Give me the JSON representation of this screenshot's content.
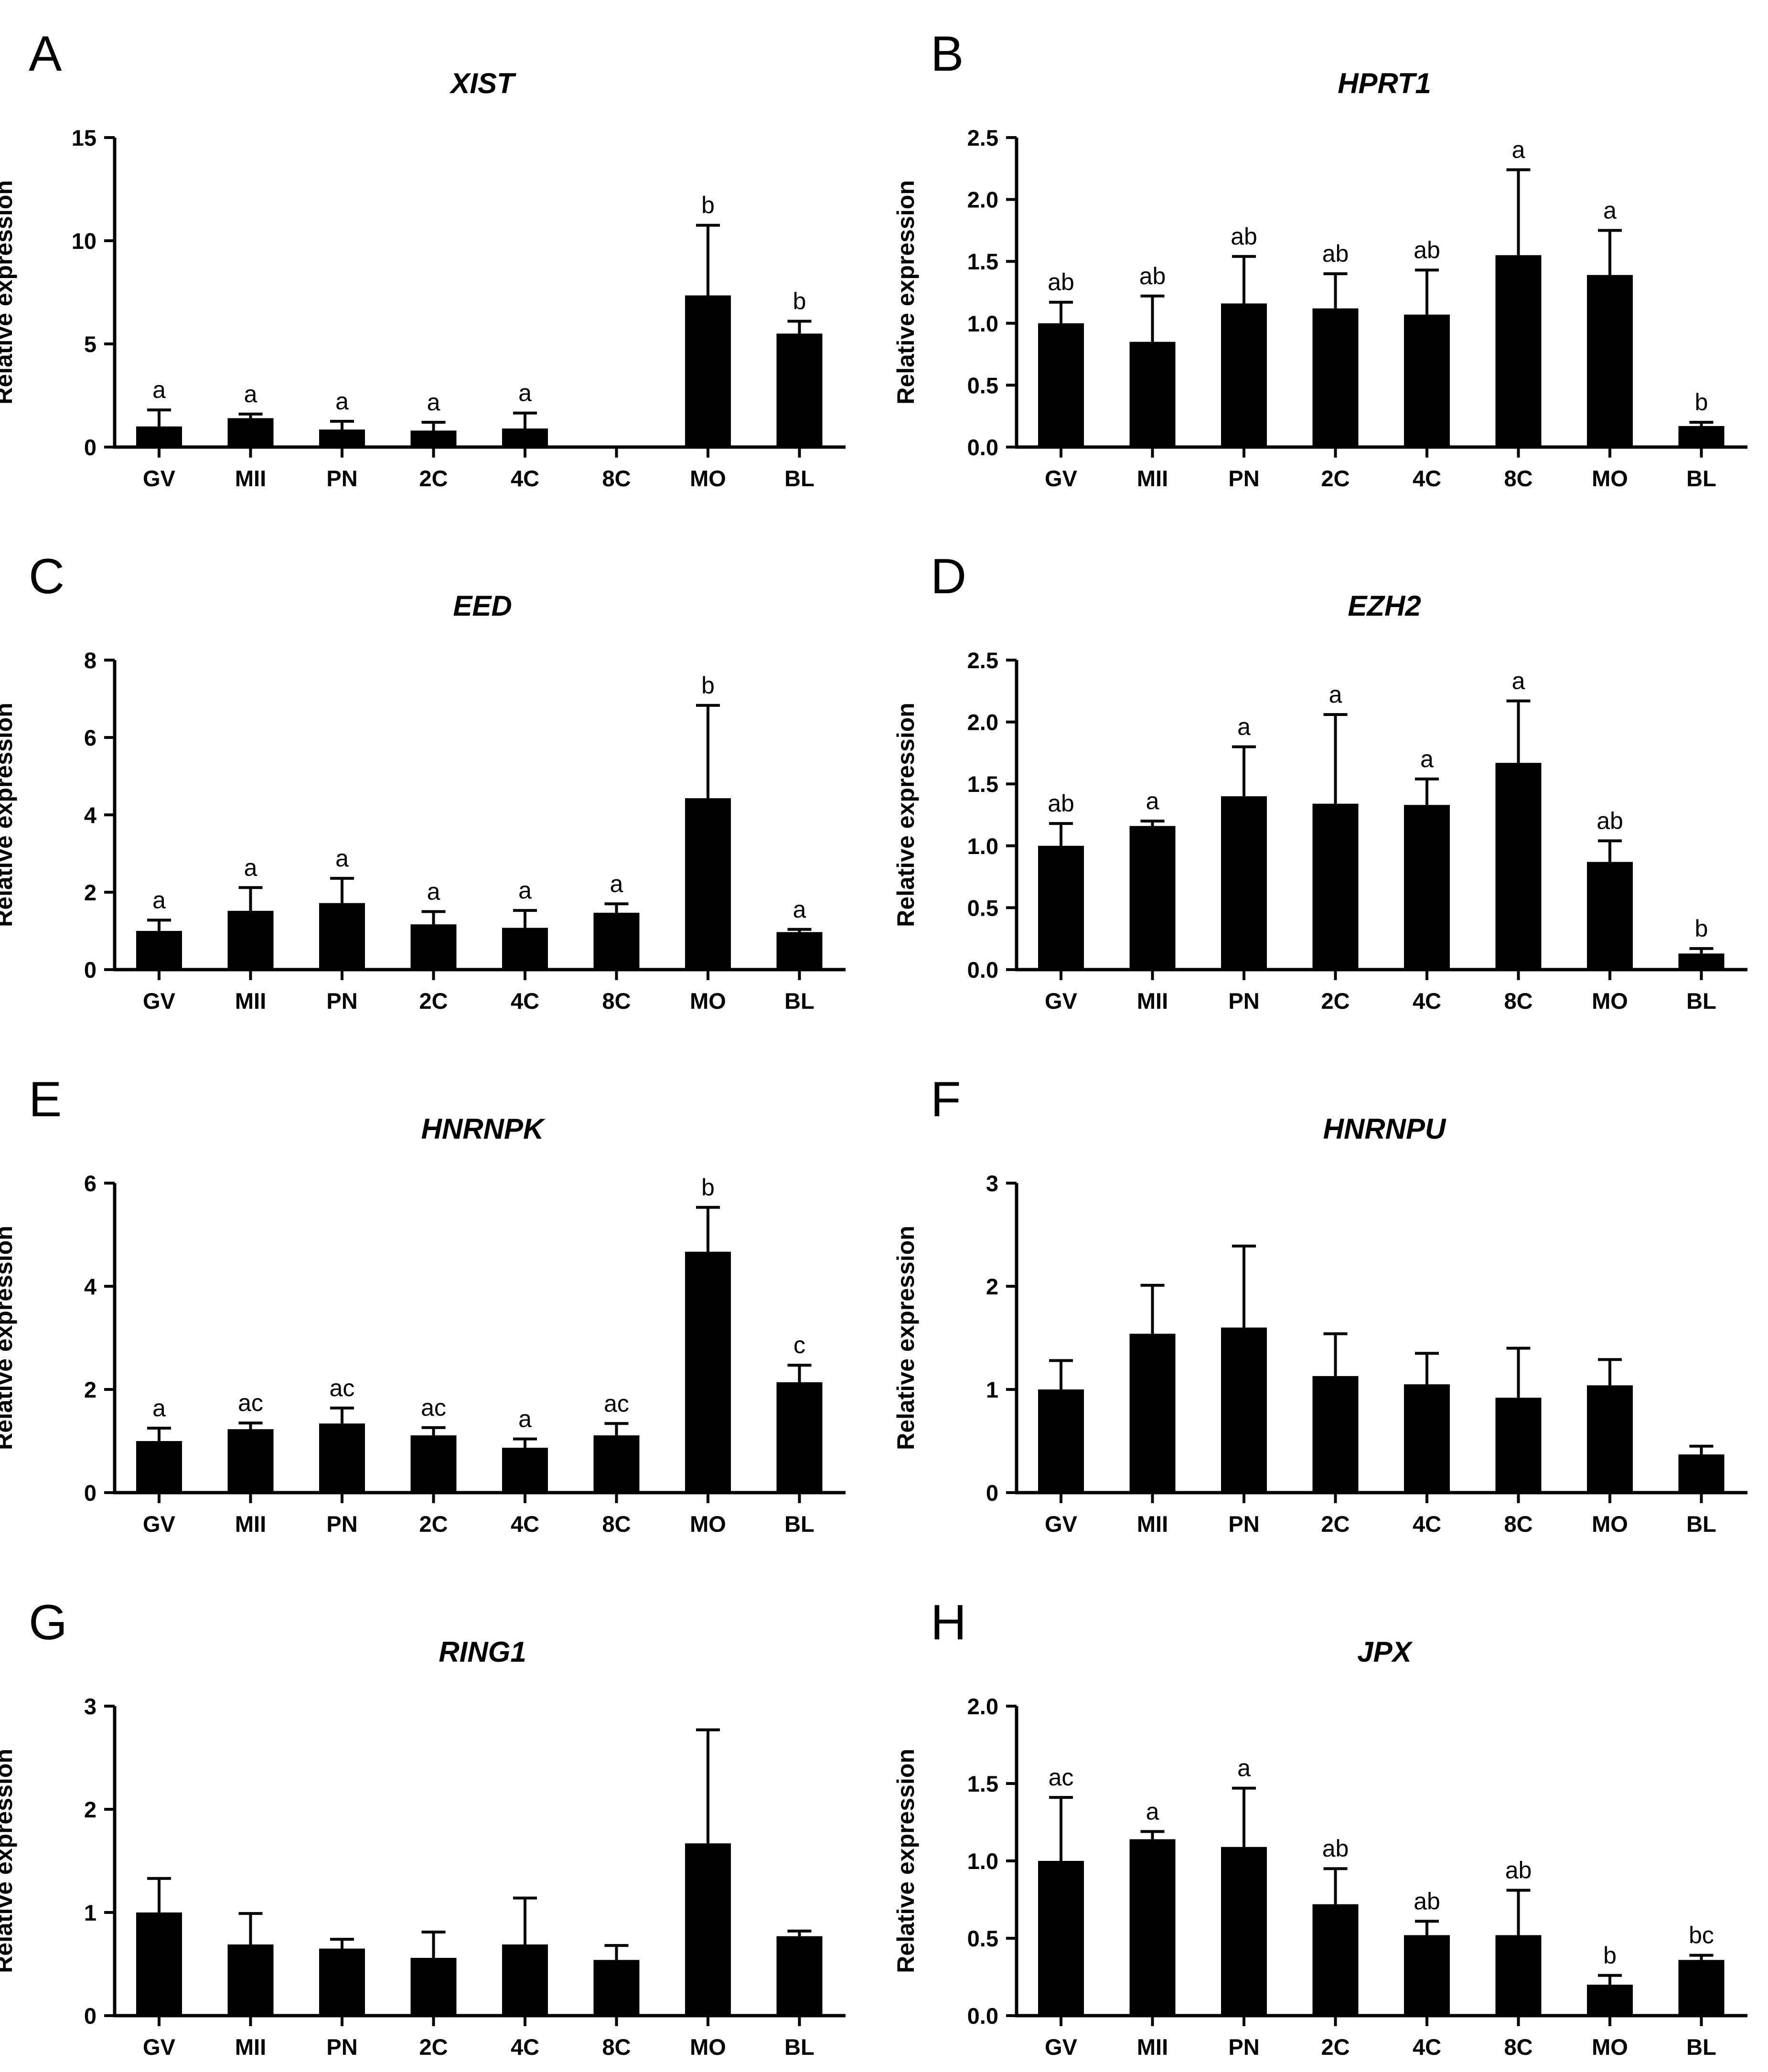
{
  "figure": {
    "categories": [
      "GV",
      "MII",
      "PN",
      "2C",
      "4C",
      "8C",
      "MO",
      "BL"
    ],
    "ylabel": "Relative expression"
  },
  "chart_data": [
    {
      "panel": "A",
      "type": "bar",
      "title": "XIST",
      "categories": [
        "GV",
        "MII",
        "PN",
        "2C",
        "4C",
        "8C",
        "MO",
        "BL"
      ],
      "values": [
        1.0,
        1.4,
        0.85,
        0.8,
        0.9,
        null,
        7.35,
        5.5
      ],
      "errors": [
        0.8,
        0.2,
        0.4,
        0.4,
        0.75,
        null,
        3.4,
        0.6
      ],
      "labels": [
        "a",
        "a",
        "a",
        "a",
        "a",
        "",
        "b",
        "b"
      ],
      "ylim": [
        0,
        15
      ],
      "yticks": [
        "0",
        "5",
        "10",
        "15"
      ],
      "ylabel": "Relative expression"
    },
    {
      "panel": "B",
      "type": "bar",
      "title": "HPRT1",
      "categories": [
        "GV",
        "MII",
        "PN",
        "2C",
        "4C",
        "8C",
        "MO",
        "BL"
      ],
      "values": [
        1.0,
        0.85,
        1.16,
        1.12,
        1.07,
        1.55,
        1.39,
        0.17
      ],
      "errors": [
        0.17,
        0.37,
        0.38,
        0.28,
        0.36,
        0.69,
        0.36,
        0.03
      ],
      "labels": [
        "ab",
        "ab",
        "ab",
        "ab",
        "ab",
        "a",
        "a",
        "b"
      ],
      "ylim": [
        0,
        2.5
      ],
      "yticks": [
        "0.0",
        "0.5",
        "1.0",
        "1.5",
        "2.0",
        "2.5"
      ],
      "ylabel": "Relative expression"
    },
    {
      "panel": "C",
      "type": "bar",
      "title": "EED",
      "categories": [
        "GV",
        "MII",
        "PN",
        "2C",
        "4C",
        "8C",
        "MO",
        "BL"
      ],
      "values": [
        1.0,
        1.52,
        1.72,
        1.17,
        1.08,
        1.47,
        4.43,
        0.97
      ],
      "errors": [
        0.28,
        0.6,
        0.64,
        0.33,
        0.45,
        0.23,
        2.4,
        0.07
      ],
      "labels": [
        "a",
        "a",
        "a",
        "a",
        "a",
        "a",
        "b",
        "a"
      ],
      "ylim": [
        0,
        8
      ],
      "yticks": [
        "0",
        "2",
        "4",
        "6",
        "8"
      ],
      "ylabel": "Relative expression"
    },
    {
      "panel": "D",
      "type": "bar",
      "title": "EZH2",
      "categories": [
        "GV",
        "MII",
        "PN",
        "2C",
        "4C",
        "8C",
        "MO",
        "BL"
      ],
      "values": [
        1.0,
        1.16,
        1.4,
        1.34,
        1.33,
        1.67,
        0.87,
        0.13
      ],
      "errors": [
        0.18,
        0.04,
        0.4,
        0.72,
        0.21,
        0.5,
        0.17,
        0.04
      ],
      "labels": [
        "ab",
        "a",
        "a",
        "a",
        "a",
        "a",
        "ab",
        "b"
      ],
      "ylim": [
        0,
        2.5
      ],
      "yticks": [
        "0.0",
        "0.5",
        "1.0",
        "1.5",
        "2.0",
        "2.5"
      ],
      "ylabel": "Relative expression"
    },
    {
      "panel": "E",
      "type": "bar",
      "title": "HNRNPK",
      "categories": [
        "GV",
        "MII",
        "PN",
        "2C",
        "4C",
        "8C",
        "MO",
        "BL"
      ],
      "values": [
        1.0,
        1.23,
        1.34,
        1.11,
        0.87,
        1.11,
        4.67,
        2.14
      ],
      "errors": [
        0.25,
        0.12,
        0.3,
        0.15,
        0.17,
        0.23,
        0.86,
        0.33
      ],
      "labels": [
        "a",
        "ac",
        "ac",
        "ac",
        "a",
        "ac",
        "b",
        "c"
      ],
      "ylim": [
        0,
        6
      ],
      "yticks": [
        "0",
        "2",
        "4",
        "6"
      ],
      "ylabel": "Relative expression"
    },
    {
      "panel": "F",
      "type": "bar",
      "title": "HNRNPU",
      "categories": [
        "GV",
        "MII",
        "PN",
        "2C",
        "4C",
        "8C",
        "MO",
        "BL"
      ],
      "values": [
        1.0,
        1.54,
        1.6,
        1.13,
        1.05,
        0.92,
        1.04,
        0.37
      ],
      "errors": [
        0.28,
        0.47,
        0.79,
        0.41,
        0.3,
        0.48,
        0.25,
        0.08
      ],
      "labels": [
        "",
        "",
        "",
        "",
        "",
        "",
        "",
        ""
      ],
      "ylim": [
        0,
        3
      ],
      "yticks": [
        "0",
        "1",
        "2",
        "3"
      ],
      "ylabel": "Relative expression"
    },
    {
      "panel": "G",
      "type": "bar",
      "title": "RING1",
      "categories": [
        "GV",
        "MII",
        "PN",
        "2C",
        "4C",
        "8C",
        "MO",
        "BL"
      ],
      "values": [
        1.0,
        0.69,
        0.65,
        0.56,
        0.69,
        0.54,
        1.67,
        0.77
      ],
      "errors": [
        0.33,
        0.3,
        0.09,
        0.25,
        0.45,
        0.14,
        1.1,
        0.05
      ],
      "labels": [
        "",
        "",
        "",
        "",
        "",
        "",
        "",
        ""
      ],
      "ylim": [
        0,
        3
      ],
      "yticks": [
        "0",
        "1",
        "2",
        "3"
      ],
      "ylabel": "Relative expression"
    },
    {
      "panel": "H",
      "type": "bar",
      "title": "JPX",
      "categories": [
        "GV",
        "MII",
        "PN",
        "2C",
        "4C",
        "8C",
        "MO",
        "BL"
      ],
      "values": [
        1.0,
        1.14,
        1.09,
        0.72,
        0.52,
        0.52,
        0.2,
        0.36
      ],
      "errors": [
        0.41,
        0.05,
        0.38,
        0.23,
        0.09,
        0.29,
        0.06,
        0.03
      ],
      "labels": [
        "ac",
        "a",
        "a",
        "ab",
        "ab",
        "ab",
        "b",
        "bc"
      ],
      "ylim": [
        0,
        2.0
      ],
      "yticks": [
        "0.0",
        "0.5",
        "1.0",
        "1.5",
        "2.0"
      ],
      "ylabel": "Relative expression"
    }
  ]
}
